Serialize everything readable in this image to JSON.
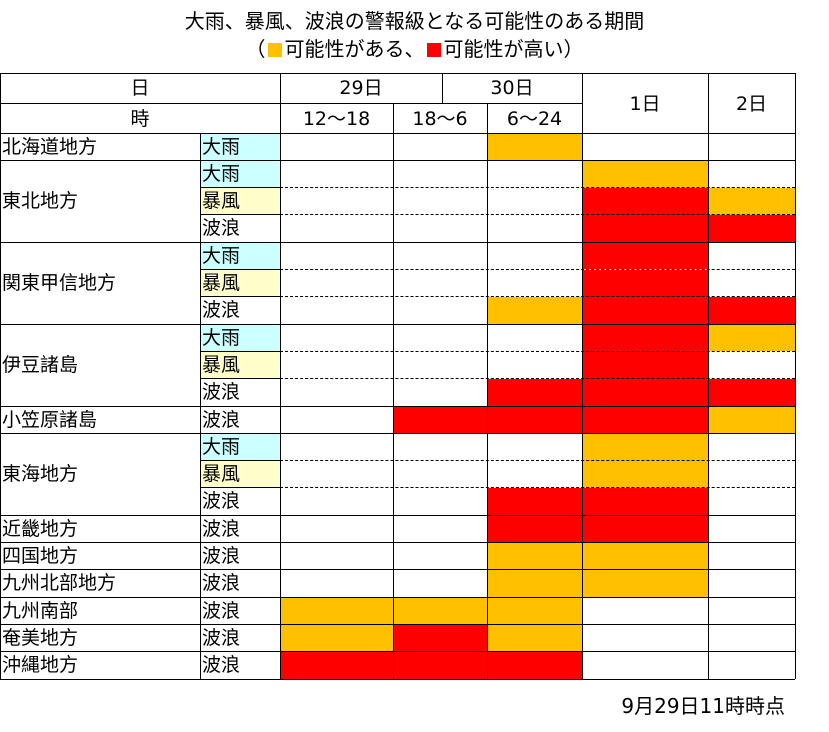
{
  "title_line1": "大雨、暴風、波浪の警報級となる可能性のある期間",
  "legend": {
    "open": "（",
    "possible_label": "可能性がある、",
    "high_label": "可能性が高い）",
    "colors": {
      "possible": "#ffc000",
      "high": "#ff0000"
    }
  },
  "header": {
    "day_label": "日",
    "time_label": "時",
    "day29": "29日",
    "day30": "30日",
    "day1": "1日",
    "day2": "2日",
    "slots": [
      "12～18",
      "18～6",
      "6～24"
    ]
  },
  "hazard_colors": {
    "大雨": "#ccffff",
    "暴風": "#ffffcc",
    "波浪": "#ffffff"
  },
  "columns": [
    "29日12～18",
    "29日18～6",
    "30日6～24",
    "1日",
    "2日"
  ],
  "regions": [
    {
      "name": "北海道地方",
      "rows": [
        {
          "hazard": "大雨",
          "levels": [
            0,
            0,
            1,
            0,
            0
          ]
        }
      ]
    },
    {
      "name": "東北地方",
      "rows": [
        {
          "hazard": "大雨",
          "levels": [
            0,
            0,
            0,
            1,
            0
          ]
        },
        {
          "hazard": "暴風",
          "levels": [
            0,
            0,
            0,
            2,
            1
          ]
        },
        {
          "hazard": "波浪",
          "levels": [
            0,
            0,
            0,
            2,
            2
          ]
        }
      ]
    },
    {
      "name": "関東甲信地方",
      "rows": [
        {
          "hazard": "大雨",
          "levels": [
            0,
            0,
            0,
            2,
            0
          ]
        },
        {
          "hazard": "暴風",
          "levels": [
            0,
            0,
            0,
            2,
            0
          ]
        },
        {
          "hazard": "波浪",
          "levels": [
            0,
            0,
            1,
            2,
            2
          ]
        }
      ]
    },
    {
      "name": "伊豆諸島",
      "rows": [
        {
          "hazard": "大雨",
          "levels": [
            0,
            0,
            0,
            2,
            1
          ]
        },
        {
          "hazard": "暴風",
          "levels": [
            0,
            0,
            0,
            2,
            0
          ]
        },
        {
          "hazard": "波浪",
          "levels": [
            0,
            0,
            2,
            2,
            2
          ]
        }
      ]
    },
    {
      "name": "小笠原諸島",
      "rows": [
        {
          "hazard": "波浪",
          "levels": [
            0,
            2,
            2,
            2,
            1
          ]
        }
      ]
    },
    {
      "name": "東海地方",
      "rows": [
        {
          "hazard": "大雨",
          "levels": [
            0,
            0,
            0,
            1,
            0
          ]
        },
        {
          "hazard": "暴風",
          "levels": [
            0,
            0,
            0,
            1,
            0
          ]
        },
        {
          "hazard": "波浪",
          "levels": [
            0,
            0,
            2,
            2,
            0
          ]
        }
      ]
    },
    {
      "name": "近畿地方",
      "rows": [
        {
          "hazard": "波浪",
          "levels": [
            0,
            0,
            2,
            2,
            0
          ]
        }
      ]
    },
    {
      "name": "四国地方",
      "rows": [
        {
          "hazard": "波浪",
          "levels": [
            0,
            0,
            1,
            1,
            0
          ]
        }
      ]
    },
    {
      "name": "九州北部地方",
      "rows": [
        {
          "hazard": "波浪",
          "levels": [
            0,
            0,
            1,
            1,
            0
          ]
        }
      ]
    },
    {
      "name": "九州南部",
      "rows": [
        {
          "hazard": "波浪",
          "levels": [
            1,
            1,
            1,
            0,
            0
          ]
        }
      ]
    },
    {
      "name": "奄美地方",
      "rows": [
        {
          "hazard": "波浪",
          "levels": [
            1,
            2,
            1,
            0,
            0
          ]
        }
      ]
    },
    {
      "name": "沖縄地方",
      "rows": [
        {
          "hazard": "波浪",
          "levels": [
            2,
            2,
            2,
            0,
            0
          ]
        }
      ]
    }
  ],
  "timestamp": "9月29日11時時点"
}
